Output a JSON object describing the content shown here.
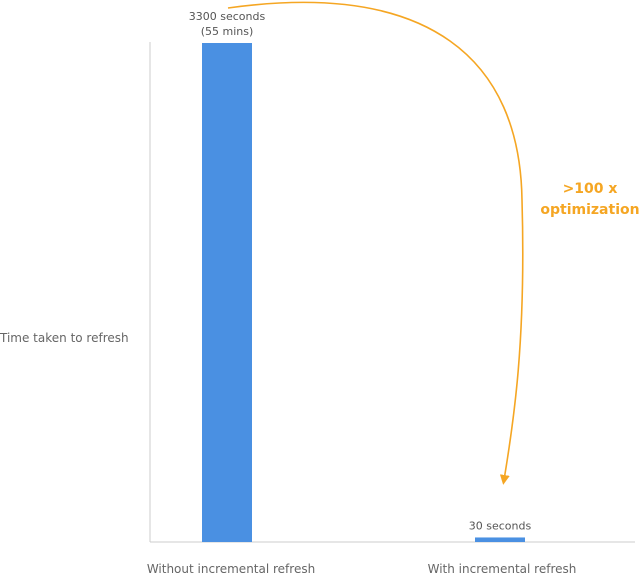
{
  "chart_data": {
    "type": "bar",
    "categories": [
      "Without incremental refresh",
      "With incremental refresh"
    ],
    "values": [
      3300,
      30
    ],
    "data_labels": [
      [
        "3300 seconds",
        "(55 mins)"
      ],
      [
        "30 seconds"
      ]
    ],
    "title": "",
    "xlabel": "",
    "ylabel": "Time taken to refresh",
    "ylim": [
      0,
      3300
    ],
    "grid": false,
    "legend": "none",
    "bar_color": "#4A90E2",
    "axis_color": "#CCCCCC",
    "annotation": {
      "lines": [
        ">100 x",
        "optimization"
      ],
      "color": "#F5A623"
    }
  }
}
